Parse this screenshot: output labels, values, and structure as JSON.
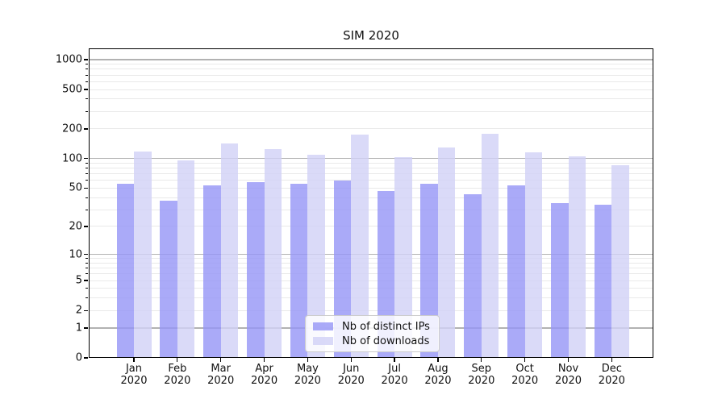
{
  "title": "SIM 2020",
  "colors": {
    "background": "#ffffff",
    "axis": "#000000",
    "major_grid": "#b2b2b2",
    "minor_grid": "#e9e9e9",
    "text": "#111111",
    "series_ips": "#9595f6",
    "series_downloads": "#d1d1f6"
  },
  "legend": {
    "items": [
      "Nb of distinct IPs",
      "Nb of downloads"
    ]
  },
  "chart_data": {
    "type": "bar",
    "title": "SIM 2020",
    "xlabel": "",
    "ylabel": "",
    "x_categories": [
      "Jan",
      "Feb",
      "Mar",
      "Apr",
      "May",
      "Jun",
      "Jul",
      "Aug",
      "Sep",
      "Oct",
      "Nov",
      "Dec"
    ],
    "x_year": "2020",
    "series": [
      {
        "name": "Nb of distinct IPs",
        "color": "#9595f6",
        "opacity": 0.8,
        "values": [
          55,
          37,
          53,
          58,
          55,
          60,
          47,
          55,
          43,
          53,
          35,
          34
        ]
      },
      {
        "name": "Nb of downloads",
        "color": "#d1d1f6",
        "opacity": 0.8,
        "values": [
          118,
          96,
          143,
          125,
          110,
          175,
          103,
          130,
          180,
          117,
          105,
          85
        ]
      }
    ],
    "y_scale": "symlog",
    "y_ticks_labeled": [
      0,
      1,
      2,
      5,
      10,
      20,
      50,
      100,
      200,
      500,
      1000
    ],
    "y_decades": [
      1,
      10,
      100,
      1000
    ],
    "ylim": [
      0,
      1000
    ],
    "grid": true,
    "legend_position": "bottom-center"
  }
}
